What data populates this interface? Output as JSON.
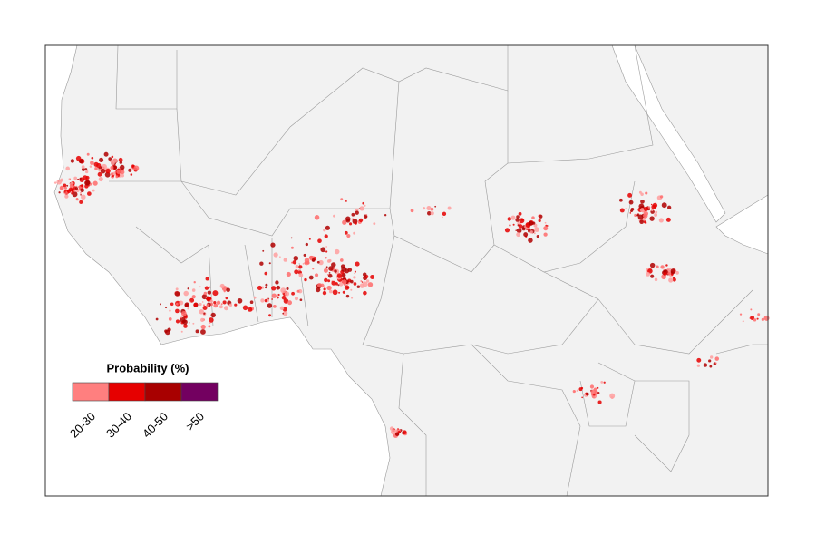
{
  "legend": {
    "title": "Probability (%)",
    "items": [
      {
        "label": "20-30",
        "color": "#ff7f7f"
      },
      {
        "label": "30-40",
        "color": "#e60000"
      },
      {
        "label": "40-50",
        "color": "#a80000"
      },
      {
        "label": ">50",
        "color": "#730060"
      }
    ]
  }
}
